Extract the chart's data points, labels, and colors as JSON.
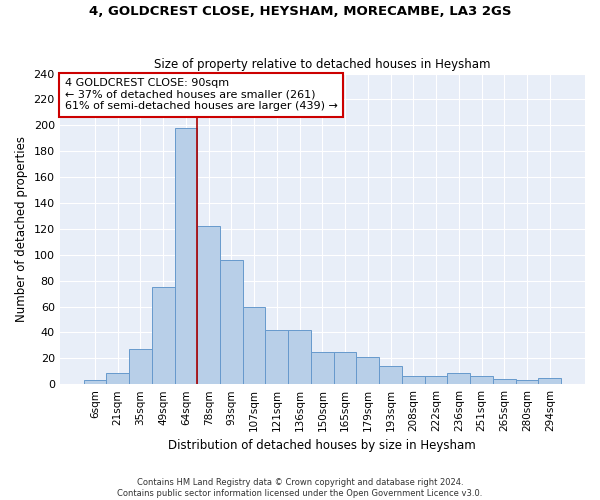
{
  "title": "4, GOLDCREST CLOSE, HEYSHAM, MORECAMBE, LA3 2GS",
  "subtitle": "Size of property relative to detached houses in Heysham",
  "xlabel": "Distribution of detached houses by size in Heysham",
  "ylabel": "Number of detached properties",
  "categories": [
    "6sqm",
    "21sqm",
    "35sqm",
    "49sqm",
    "64sqm",
    "78sqm",
    "93sqm",
    "107sqm",
    "121sqm",
    "136sqm",
    "150sqm",
    "165sqm",
    "179sqm",
    "193sqm",
    "208sqm",
    "222sqm",
    "236sqm",
    "251sqm",
    "265sqm",
    "280sqm",
    "294sqm"
  ],
  "values": [
    3,
    9,
    27,
    75,
    198,
    122,
    96,
    60,
    42,
    42,
    25,
    25,
    21,
    14,
    6,
    6,
    9,
    6,
    4,
    3,
    5
  ],
  "bar_color": "#b8cfe8",
  "bar_edge_color": "#6699cc",
  "bar_width": 1.0,
  "property_line_x": 4.5,
  "annotation_text": "4 GOLDCREST CLOSE: 90sqm\n← 37% of detached houses are smaller (261)\n61% of semi-detached houses are larger (439) →",
  "annotation_box_color": "#ffffff",
  "annotation_box_edge_color": "#cc0000",
  "vline_color": "#aa0000",
  "background_color": "#e8eef8",
  "footer_line1": "Contains HM Land Registry data © Crown copyright and database right 2024.",
  "footer_line2": "Contains public sector information licensed under the Open Government Licence v3.0.",
  "ylim": [
    0,
    240
  ],
  "yticks": [
    0,
    20,
    40,
    60,
    80,
    100,
    120,
    140,
    160,
    180,
    200,
    220,
    240
  ]
}
